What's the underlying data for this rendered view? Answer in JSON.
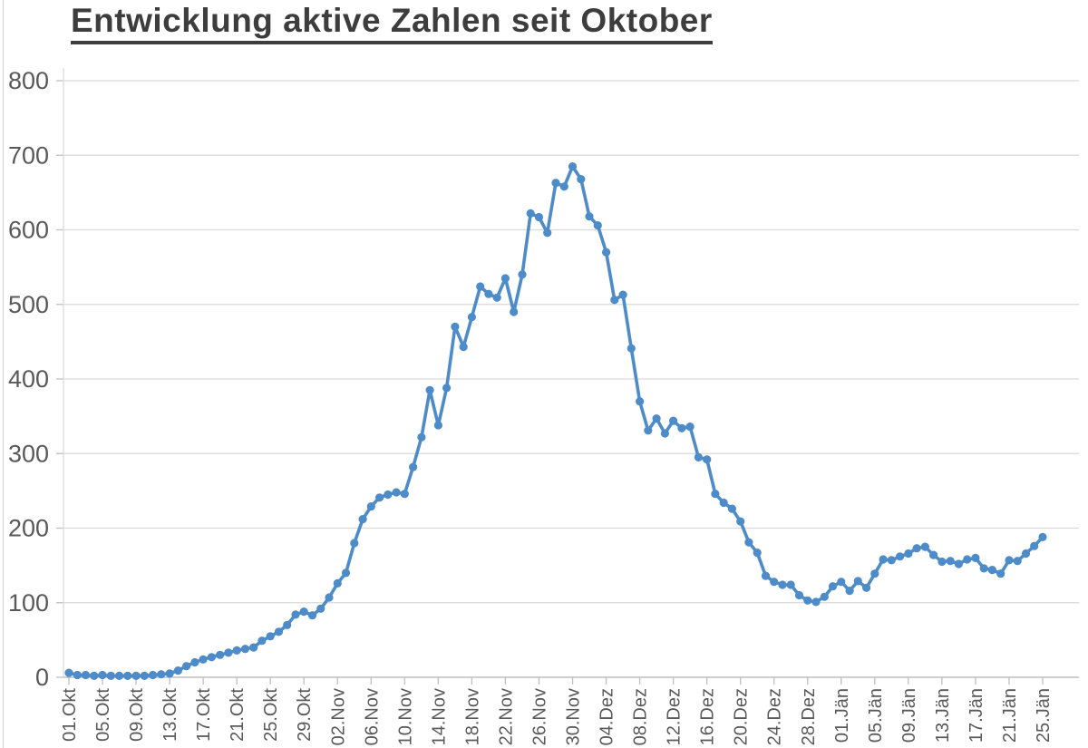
{
  "chart_data": {
    "type": "line",
    "title": "Entwicklung aktive Zahlen seit Oktober",
    "xlabel": "",
    "ylabel": "",
    "ylim": [
      0,
      800
    ],
    "ytick_step": 100,
    "y_tick_labels": [
      "0",
      "100",
      "200",
      "300",
      "400",
      "500",
      "600",
      "700",
      "800"
    ],
    "grid": true,
    "legend_position": "none",
    "x_tick_every_n_points": 4,
    "x_tick_labels": [
      "01.Okt",
      "05.Okt",
      "09.Okt",
      "13.Okt",
      "17.Okt",
      "21.Okt",
      "25.Okt",
      "29.Okt",
      "02.Nov",
      "06.Nov",
      "10.Nov",
      "14.Nov",
      "18.Nov",
      "22.Nov",
      "26.Nov",
      "30.Nov",
      "04.Dez",
      "08.Dez",
      "12.Dez",
      "16.Dez",
      "20.Dez",
      "24.Dez",
      "28.Dez",
      "01.Jän",
      "05.Jän",
      "09.Jän",
      "13.Jän",
      "17.Jän",
      "21.Jän",
      "25.Jän"
    ],
    "series": [
      {
        "name": "aktive Zahlen",
        "values": [
          6,
          3,
          3,
          2,
          3,
          2,
          2,
          2,
          2,
          2,
          3,
          4,
          5,
          9,
          15,
          20,
          24,
          27,
          30,
          33,
          36,
          38,
          40,
          49,
          55,
          61,
          70,
          84,
          88,
          83,
          92,
          107,
          126,
          140,
          180,
          212,
          229,
          241,
          245,
          248,
          246,
          282,
          322,
          385,
          338,
          388,
          470,
          443,
          483,
          524,
          514,
          509,
          535,
          490,
          540,
          622,
          617,
          596,
          663,
          658,
          685,
          668,
          618,
          606,
          570,
          506,
          513,
          441,
          370,
          331,
          347,
          327,
          344,
          334,
          336,
          295,
          292,
          246,
          234,
          226,
          209,
          181,
          167,
          136,
          128,
          124,
          124,
          110,
          103,
          101,
          108,
          122,
          128,
          116,
          129,
          120,
          139,
          158,
          157,
          162,
          166,
          173,
          175,
          164,
          155,
          156,
          152,
          158,
          160,
          146,
          144,
          139,
          157,
          156,
          166,
          176,
          188
        ]
      }
    ],
    "colors": {
      "line": "#4E8CC9",
      "marker": "#4E8CC9",
      "grid": "#D9D9D9",
      "axis": "#BFBFBF",
      "tick_label": "#595959",
      "title": "#3d3d3d",
      "background": "#ffffff"
    }
  }
}
